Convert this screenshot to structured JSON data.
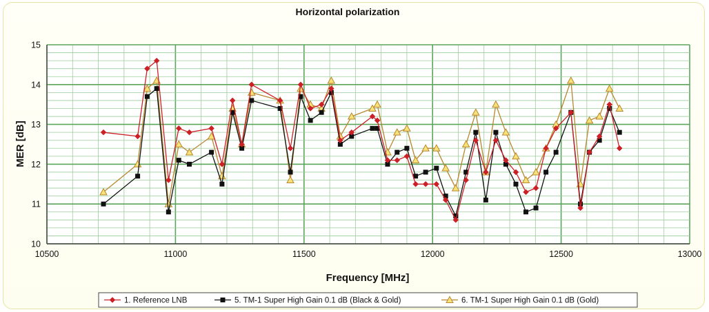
{
  "chart_data": {
    "type": "line",
    "title": "Horizontal polarization",
    "xlabel": "Frequency [MHz]",
    "ylabel": "MER [dB]",
    "xlim": [
      10500,
      13000
    ],
    "ylim": [
      10,
      15
    ],
    "x_ticks": [
      10500,
      11000,
      11500,
      12000,
      12500,
      13000
    ],
    "y_ticks": [
      10,
      11,
      12,
      13,
      14,
      15
    ],
    "grid": true,
    "legend_position": "bottom",
    "series": [
      {
        "name": "1. Reference LNB",
        "color": "#cc2027",
        "marker": "diamond",
        "points": [
          [
            10720,
            12.8
          ],
          [
            10853,
            12.7
          ],
          [
            10890,
            14.4
          ],
          [
            10927,
            14.6
          ],
          [
            10973,
            11.6
          ],
          [
            11013,
            12.9
          ],
          [
            11054,
            12.8
          ],
          [
            11140,
            12.9
          ],
          [
            11181,
            12.0
          ],
          [
            11222,
            13.6
          ],
          [
            11258,
            12.5
          ],
          [
            11296,
            14.0
          ],
          [
            11407,
            13.6
          ],
          [
            11447,
            12.4
          ],
          [
            11487,
            14.0
          ],
          [
            11525,
            13.4
          ],
          [
            11568,
            13.5
          ],
          [
            11606,
            13.9
          ],
          [
            11641,
            12.6
          ],
          [
            11685,
            12.8
          ],
          [
            11766,
            13.2
          ],
          [
            11785,
            13.1
          ],
          [
            11825,
            12.1
          ],
          [
            11862,
            12.1
          ],
          [
            11900,
            12.2
          ],
          [
            11934,
            11.5
          ],
          [
            11973,
            11.5
          ],
          [
            12015,
            11.5
          ],
          [
            12051,
            11.1
          ],
          [
            12090,
            10.6
          ],
          [
            12130,
            11.6
          ],
          [
            12168,
            12.6
          ],
          [
            12207,
            11.8
          ],
          [
            12246,
            12.6
          ],
          [
            12285,
            12.1
          ],
          [
            12324,
            11.8
          ],
          [
            12363,
            11.3
          ],
          [
            12402,
            11.4
          ],
          [
            12441,
            12.4
          ],
          [
            12480,
            12.9
          ],
          [
            12538,
            13.3
          ],
          [
            12575,
            10.9
          ],
          [
            12610,
            12.3
          ],
          [
            12649,
            12.7
          ],
          [
            12688,
            13.5
          ],
          [
            12727,
            12.4
          ]
        ]
      },
      {
        "name": "5. TM-1 Super High Gain 0.1 dB (Black & Gold)",
        "color": "#111111",
        "marker": "square",
        "points": [
          [
            10720,
            11.0
          ],
          [
            10853,
            11.7
          ],
          [
            10890,
            13.7
          ],
          [
            10927,
            13.9
          ],
          [
            10973,
            10.8
          ],
          [
            11013,
            12.1
          ],
          [
            11054,
            12.0
          ],
          [
            11140,
            12.3
          ],
          [
            11181,
            11.5
          ],
          [
            11222,
            13.3
          ],
          [
            11258,
            12.4
          ],
          [
            11296,
            13.6
          ],
          [
            11407,
            13.4
          ],
          [
            11447,
            11.8
          ],
          [
            11487,
            13.7
          ],
          [
            11525,
            13.1
          ],
          [
            11568,
            13.3
          ],
          [
            11606,
            13.8
          ],
          [
            11641,
            12.5
          ],
          [
            11685,
            12.7
          ],
          [
            11766,
            12.9
          ],
          [
            11785,
            12.9
          ],
          [
            11825,
            12.0
          ],
          [
            11862,
            12.3
          ],
          [
            11900,
            12.4
          ],
          [
            11934,
            11.7
          ],
          [
            11973,
            11.8
          ],
          [
            12015,
            11.9
          ],
          [
            12051,
            11.2
          ],
          [
            12090,
            10.7
          ],
          [
            12130,
            11.8
          ],
          [
            12168,
            12.8
          ],
          [
            12207,
            11.1
          ],
          [
            12246,
            12.8
          ],
          [
            12285,
            12.0
          ],
          [
            12324,
            11.5
          ],
          [
            12363,
            10.8
          ],
          [
            12402,
            10.9
          ],
          [
            12441,
            11.8
          ],
          [
            12480,
            12.3
          ],
          [
            12538,
            13.3
          ],
          [
            12575,
            11.0
          ],
          [
            12610,
            12.3
          ],
          [
            12649,
            12.6
          ],
          [
            12688,
            13.4
          ],
          [
            12727,
            12.8
          ]
        ]
      },
      {
        "name": "6. TM-1 Super High Gain 0.1 dB (Gold)",
        "color": "#b8862e",
        "fill": "#f7e27a",
        "marker": "triangle",
        "points": [
          [
            10720,
            11.3
          ],
          [
            10853,
            12.0
          ],
          [
            10890,
            13.9
          ],
          [
            10927,
            14.1
          ],
          [
            10973,
            11.0
          ],
          [
            11013,
            12.5
          ],
          [
            11054,
            12.3
          ],
          [
            11140,
            12.7
          ],
          [
            11181,
            11.7
          ],
          [
            11222,
            13.4
          ],
          [
            11258,
            12.5
          ],
          [
            11296,
            13.8
          ],
          [
            11407,
            13.6
          ],
          [
            11447,
            11.6
          ],
          [
            11487,
            13.9
          ],
          [
            11525,
            13.5
          ],
          [
            11568,
            13.4
          ],
          [
            11606,
            14.1
          ],
          [
            11641,
            12.7
          ],
          [
            11685,
            13.2
          ],
          [
            11766,
            13.4
          ],
          [
            11785,
            13.5
          ],
          [
            11825,
            12.3
          ],
          [
            11862,
            12.8
          ],
          [
            11900,
            12.9
          ],
          [
            11934,
            12.1
          ],
          [
            11973,
            12.4
          ],
          [
            12015,
            12.4
          ],
          [
            12051,
            11.9
          ],
          [
            12090,
            11.4
          ],
          [
            12130,
            12.5
          ],
          [
            12168,
            13.3
          ],
          [
            12207,
            11.8
          ],
          [
            12246,
            13.5
          ],
          [
            12285,
            12.8
          ],
          [
            12324,
            12.2
          ],
          [
            12363,
            11.6
          ],
          [
            12402,
            11.8
          ],
          [
            12441,
            12.4
          ],
          [
            12480,
            13.0
          ],
          [
            12538,
            14.1
          ],
          [
            12575,
            11.5
          ],
          [
            12610,
            13.1
          ],
          [
            12649,
            13.2
          ],
          [
            12688,
            13.9
          ],
          [
            12727,
            13.4
          ]
        ]
      }
    ]
  }
}
